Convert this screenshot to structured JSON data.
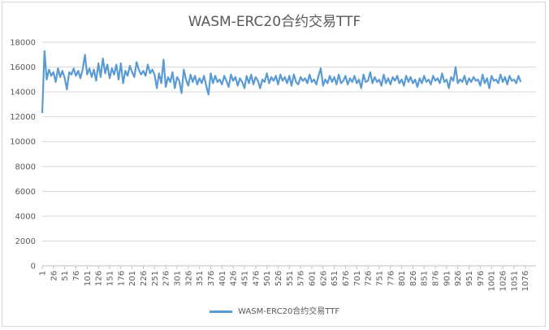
{
  "chart_data": {
    "type": "line",
    "title": "WASM-ERC20合约交易TTF",
    "xlabel": "",
    "ylabel": "",
    "ylim": [
      0,
      18000
    ],
    "yticks": [
      0,
      2000,
      4000,
      6000,
      8000,
      10000,
      12000,
      14000,
      16000,
      18000
    ],
    "xrange": [
      1,
      1100
    ],
    "xticks": [
      1,
      26,
      51,
      76,
      101,
      126,
      151,
      176,
      201,
      226,
      251,
      276,
      301,
      326,
      351,
      376,
      401,
      426,
      451,
      476,
      501,
      526,
      551,
      576,
      601,
      626,
      651,
      676,
      701,
      726,
      751,
      776,
      801,
      826,
      851,
      876,
      901,
      926,
      951,
      976,
      1001,
      1026,
      1051,
      1076
    ],
    "grid": true,
    "legend_position": "bottom",
    "color": "#5b9bd5",
    "series": [
      {
        "name": "WASM-ERC20合约交易TTF",
        "sample_step": 5,
        "values": [
          12300,
          17300,
          15000,
          15800,
          15300,
          15600,
          14800,
          15900,
          15200,
          15700,
          15100,
          14200,
          15600,
          15400,
          15900,
          15300,
          15700,
          15100,
          15800,
          17000,
          15400,
          15900,
          15200,
          15800,
          14900,
          16300,
          15200,
          16700,
          15500,
          16200,
          15100,
          15900,
          15400,
          16200,
          15000,
          16300,
          14700,
          15700,
          15300,
          16100,
          15600,
          15200,
          16400,
          15800,
          15400,
          15700,
          15300,
          16200,
          15500,
          15800,
          15400,
          14300,
          15500,
          14700,
          16600,
          14400,
          15200,
          14800,
          15600,
          14300,
          15200,
          14900,
          13900,
          15800,
          15000,
          14500,
          15400,
          14800,
          15300,
          14600,
          15100,
          14700,
          15300,
          14500,
          13800,
          15500,
          14700,
          15300,
          14800,
          15000,
          14600,
          15300,
          14900,
          14400,
          15400,
          14900,
          15200,
          14500,
          15100,
          14800,
          14300,
          15300,
          14700,
          15400,
          14600,
          15200,
          14900,
          14300,
          15000,
          14800,
          15500,
          14700,
          15200,
          14900,
          15300,
          14600,
          15400,
          14900,
          15200,
          14700,
          15300,
          14500,
          15400,
          14800,
          14600,
          15200,
          14900,
          15100,
          14700,
          15400,
          14800,
          15000,
          14600,
          15300,
          15900,
          14500,
          15000,
          14700,
          15300,
          14800,
          15200,
          14600,
          15400,
          14700,
          14900,
          15300,
          14600,
          15100,
          14800,
          15300,
          14700,
          15000,
          14300,
          15400,
          14800,
          14900,
          15600,
          14700,
          15200,
          14800,
          15000,
          14500,
          15400,
          14700,
          15100,
          14600,
          15200,
          14900,
          15300,
          14700,
          15000,
          14500,
          15300,
          14800,
          15200,
          14700,
          15000,
          14400,
          15100,
          14700,
          15300,
          14800,
          15000,
          14600,
          15300,
          14900,
          15100,
          14700,
          15500,
          14800,
          15000,
          14300,
          15200,
          14900,
          16000,
          14700,
          15000,
          14800,
          15300,
          14600,
          15100,
          14800,
          15200,
          14900,
          15000,
          14500,
          15400,
          14700,
          15100,
          14300,
          15300,
          14900,
          15000,
          14700,
          15400,
          14800,
          15200,
          14600,
          15300,
          14900,
          15000,
          14700,
          15300,
          14800
        ]
      }
    ]
  }
}
